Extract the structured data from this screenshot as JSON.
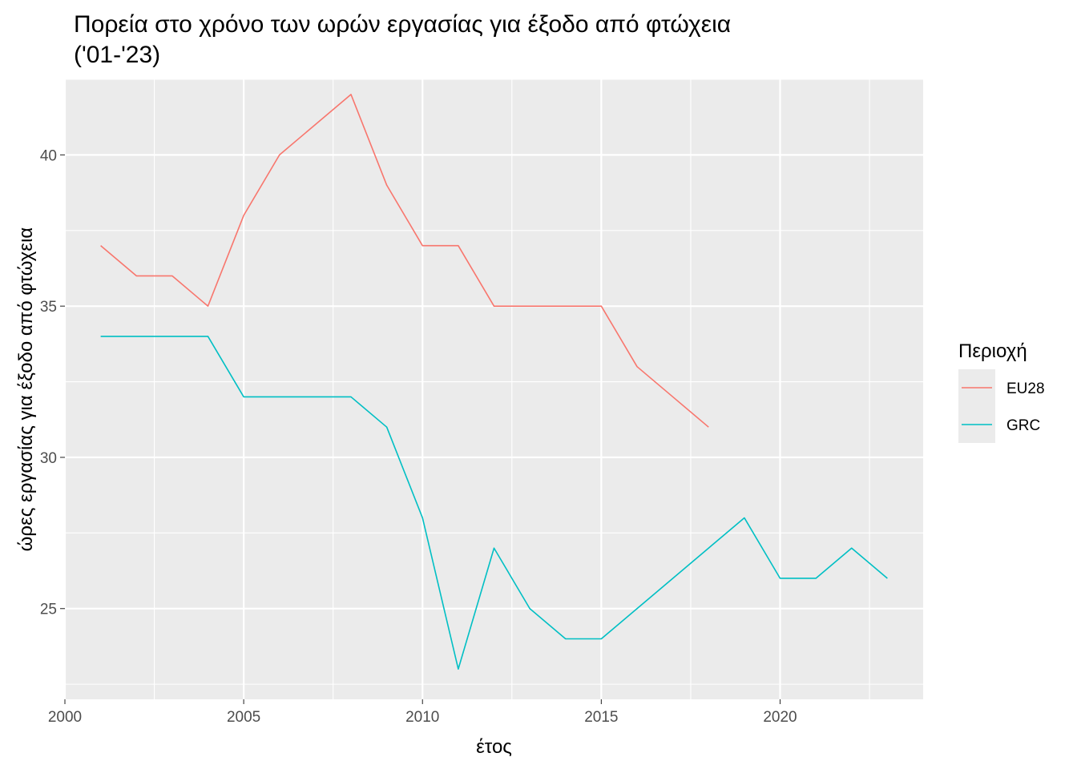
{
  "chart_data": {
    "type": "line",
    "title": "Πορεία στο χρόνο των ωρών εργασίας για έξοδο από φτώχεια\n('01-'23)",
    "xlabel": "έτος",
    "ylabel": "ώρες εργασίας για έξοδο από φτώχεια",
    "xlim": [
      2000,
      2024
    ],
    "ylim": [
      22,
      42.5
    ],
    "xticks": [
      2000,
      2005,
      2010,
      2015,
      2020
    ],
    "yticks": [
      25,
      30,
      35,
      40
    ],
    "grid": true,
    "legend": {
      "title": "Περιοχή",
      "position": "right"
    },
    "series": [
      {
        "name": "EU28",
        "color": "#F8766D",
        "x": [
          2001,
          2002,
          2003,
          2004,
          2005,
          2006,
          2007,
          2008,
          2009,
          2010,
          2011,
          2012,
          2013,
          2014,
          2015,
          2016,
          2017,
          2018
        ],
        "values": [
          37,
          36,
          36,
          35,
          38,
          40,
          41,
          42,
          39,
          37,
          37,
          35,
          35,
          35,
          35,
          33,
          32,
          31
        ]
      },
      {
        "name": "GRC",
        "color": "#00BFC4",
        "x": [
          2001,
          2002,
          2003,
          2004,
          2005,
          2006,
          2007,
          2008,
          2009,
          2010,
          2011,
          2012,
          2013,
          2014,
          2015,
          2016,
          2017,
          2018,
          2019,
          2020,
          2021,
          2022,
          2023
        ],
        "values": [
          34,
          34,
          34,
          34,
          32,
          32,
          32,
          32,
          31,
          28,
          23,
          27,
          25,
          24,
          24,
          25,
          26,
          27,
          28,
          26,
          26,
          27,
          26
        ]
      }
    ]
  }
}
